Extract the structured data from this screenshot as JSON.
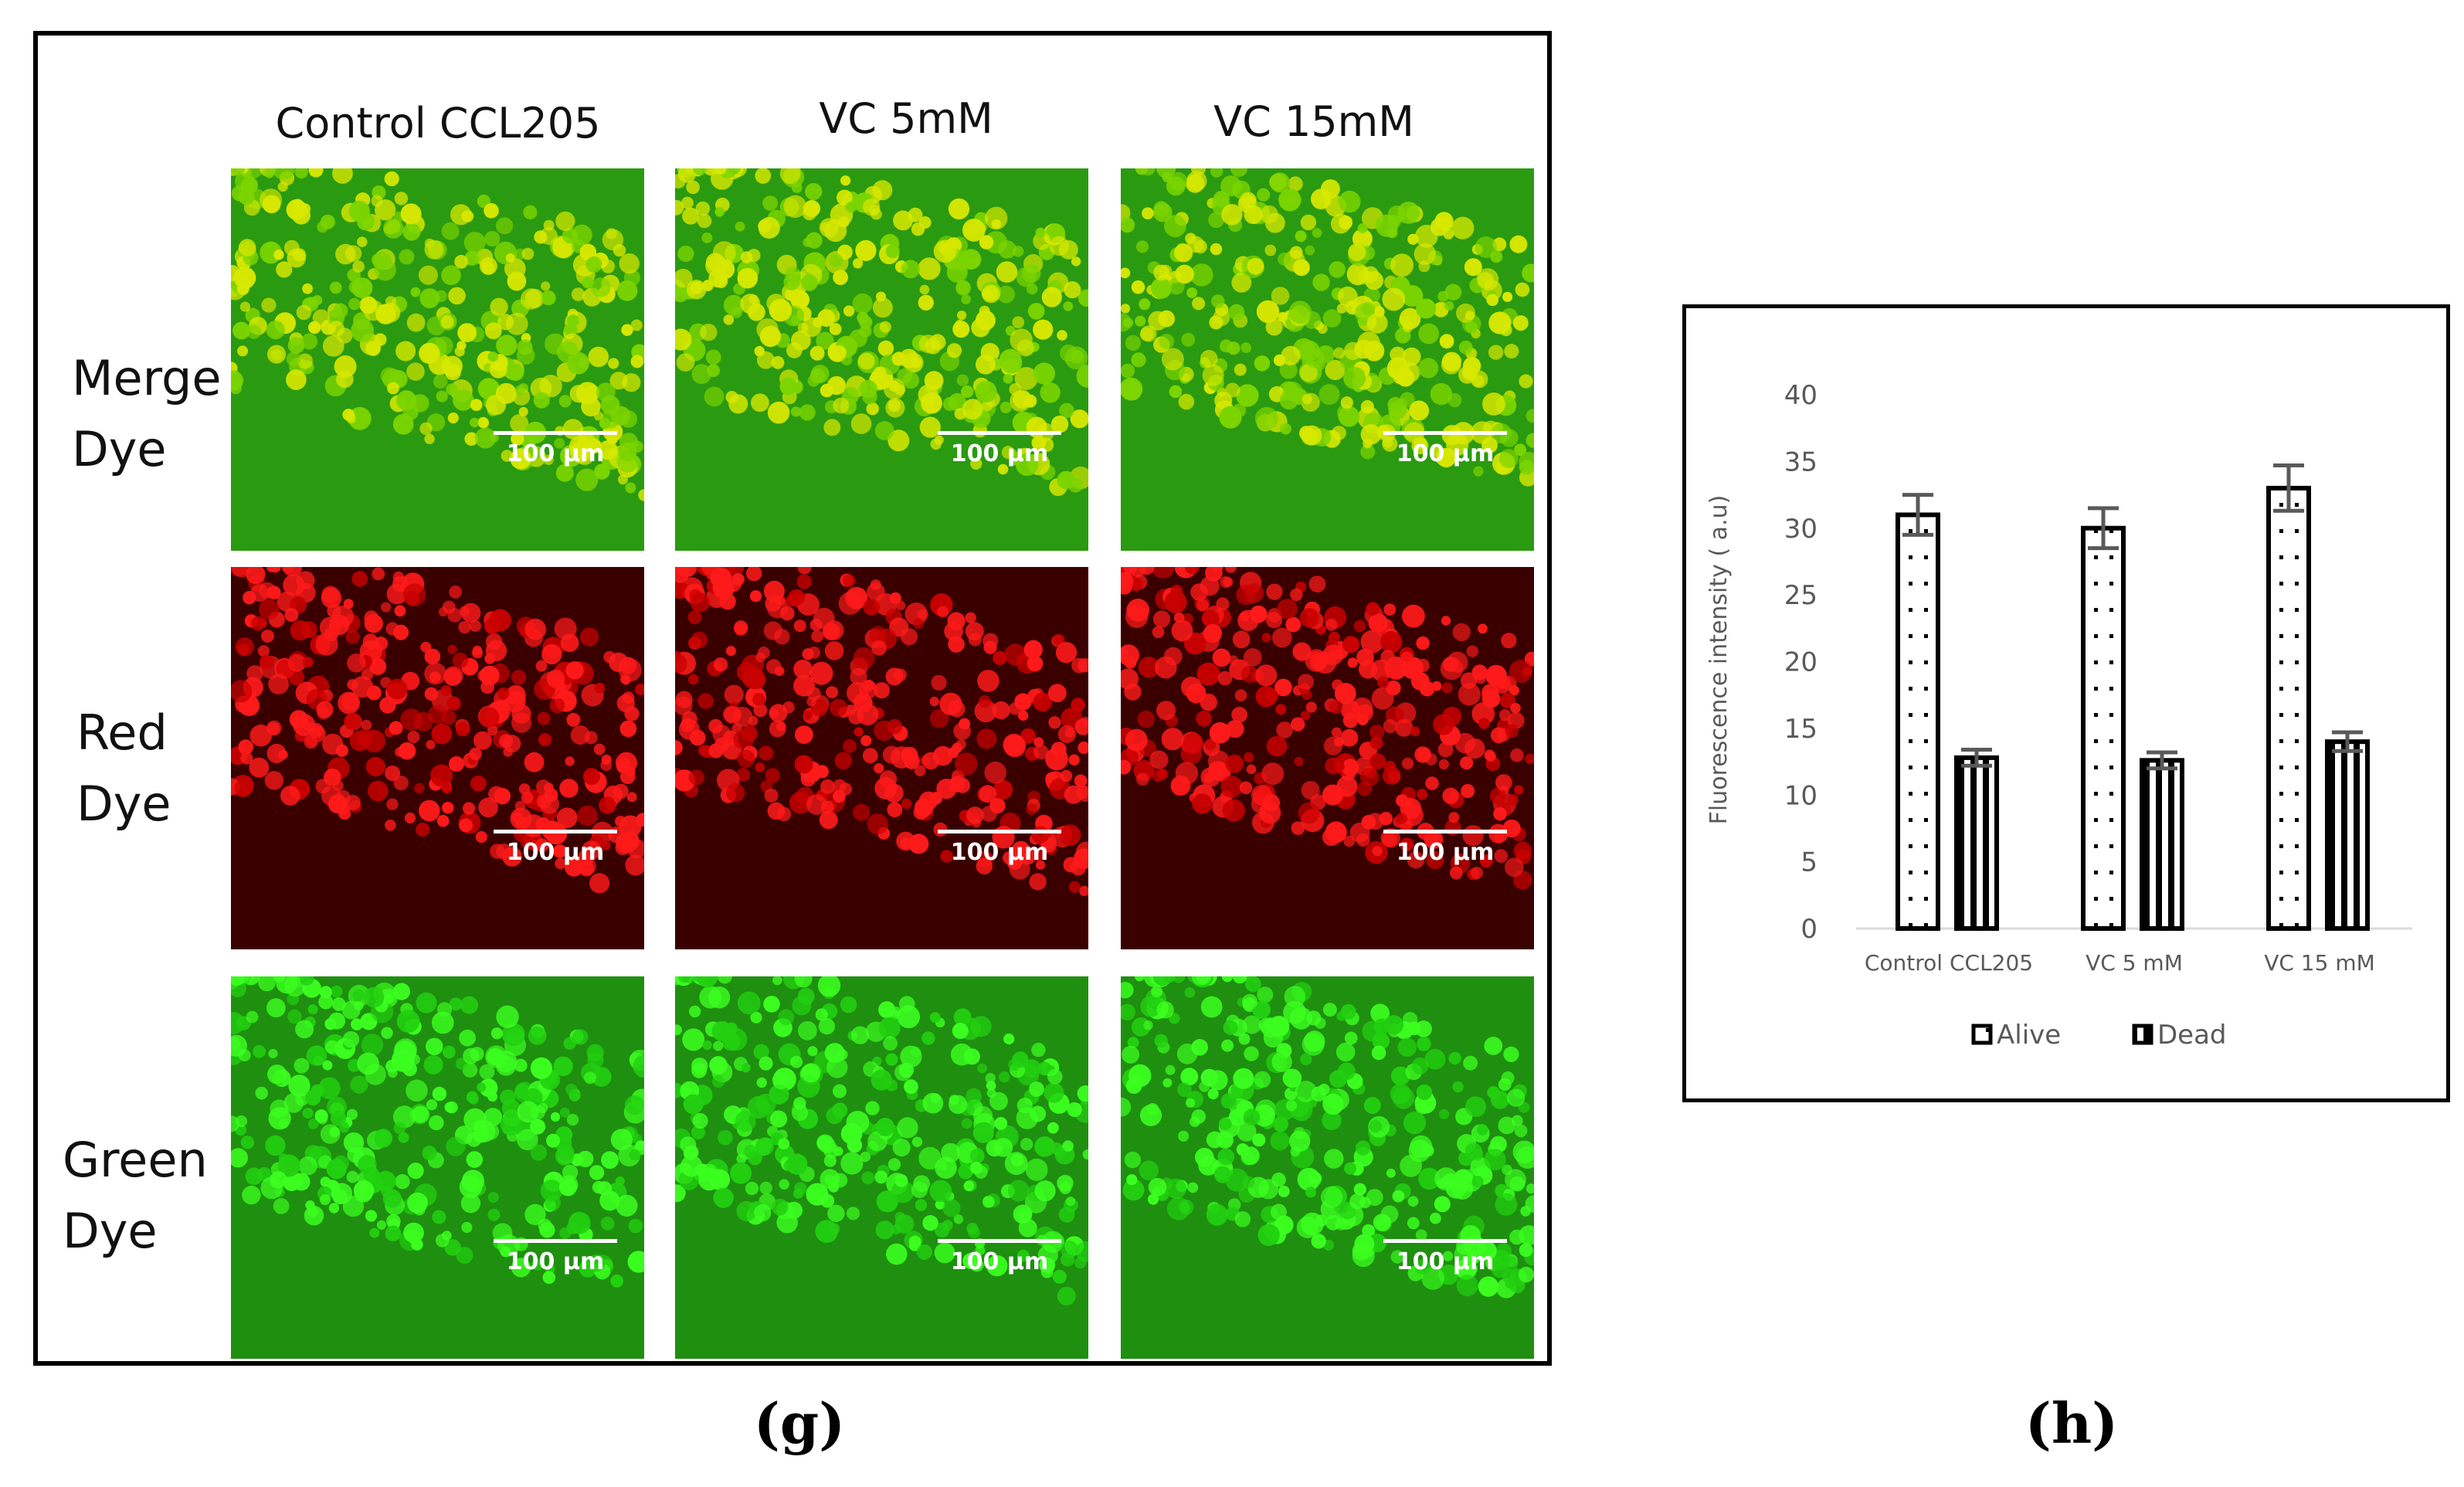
{
  "panel_g": {
    "columns": [
      "Control CCL205",
      "VC 5mM",
      "VC 15mM"
    ],
    "rows": [
      {
        "line1": "Merge",
        "line2": "Dye"
      },
      {
        "line1": "Red",
        "line2": "Dye"
      },
      {
        "line1": "Green",
        "line2": "Dye"
      }
    ],
    "scale_label": "100 µm",
    "tile_colors": {
      "merge_bg": "#2a9a10",
      "red_bg": "#3a0000",
      "green_bg": "#1f8f10"
    },
    "letter": "(g)"
  },
  "panel_h": {
    "letter": "(h)",
    "chart_data": {
      "type": "bar",
      "categories": [
        "Control CCL205",
        "VC 5 mM",
        "VC 15 mM"
      ],
      "series": [
        {
          "name": "Alive",
          "values": [
            31,
            30,
            33
          ],
          "errors": [
            1.5,
            1.5,
            1.7
          ],
          "pattern": "dotted"
        },
        {
          "name": "Dead",
          "values": [
            12.8,
            12.6,
            14
          ],
          "errors": [
            0.6,
            0.6,
            0.7
          ],
          "pattern": "vertical-stripes"
        }
      ],
      "ylabel": "Fluorescence intensity ( a.u)",
      "xlabel": "",
      "ylim": [
        0,
        40
      ],
      "yticks": [
        0,
        5,
        10,
        15,
        20,
        25,
        30,
        35,
        40
      ],
      "legend_position": "bottom",
      "grid": false
    }
  }
}
